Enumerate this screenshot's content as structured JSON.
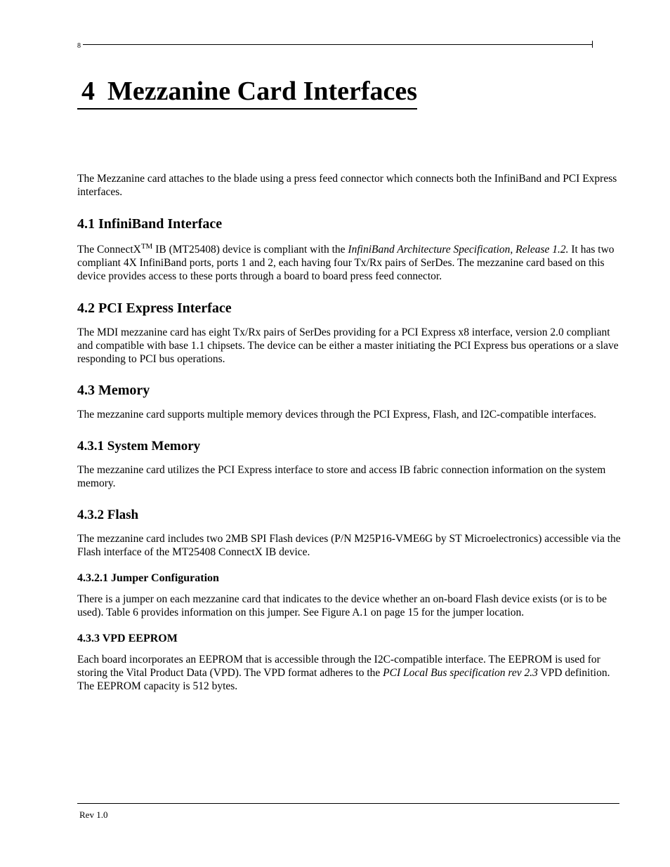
{
  "page": {
    "page_number_top": "8",
    "footer_rev": "Rev 1.0"
  },
  "chapter": {
    "number": "4",
    "title": "Mezzanine Card Interfaces"
  },
  "intro": "The Mezzanine card attaches to the blade using a press feed connector which connects both the InfiniBand and PCI Express interfaces.",
  "sections": {
    "s41": {
      "heading": "4.1 InfiniBand Interface",
      "p1_a": "The ConnectX",
      "p1_tm": "TM",
      "p1_b": " IB (MT25408) device is compliant with the ",
      "p1_italic": "InfiniBand Architecture Specification, Release 1.2.",
      "p1_c": " It has two compliant 4X InfiniBand ports, ports 1 and 2, each having four Tx/Rx pairs of SerDes. The  mezzanine card based on this device provides access to these ports through a board to board press feed connector."
    },
    "s42": {
      "heading": "4.2 PCI Express Interface",
      "p1": "The MDI mezzanine card has eight Tx/Rx pairs of SerDes providing for a PCI Express x8 interface, version 2.0 compliant and compatible with base 1.1 chipsets. The device can be either a master initiating the PCI Express bus operations or a slave responding to PCI bus operations."
    },
    "s43": {
      "heading": "4.3 Memory",
      "p1": "The mezzanine card supports multiple memory devices through the PCI Express, Flash, and I2C-compatible interfaces."
    },
    "s431": {
      "heading": "4.3.1 System Memory",
      "p1": "The mezzanine card utilizes the PCI Express interface to store and access IB fabric connection information on the system memory."
    },
    "s432": {
      "heading": "4.3.2 Flash",
      "p1": "The mezzanine card includes two 2MB SPI Flash devices (P/N M25P16-VME6G by ST Microelectronics) accessible via the Flash interface of the MT25408 ConnectX IB device."
    },
    "s4321": {
      "heading": "4.3.2.1 Jumper Configuration",
      "p1": "There is a jumper on each mezzanine card that indicates to the device whether an on-board Flash device exists (or is to be used). Table 6 provides information on this jumper. See Figure A.1 on page 15 for the jumper location."
    },
    "s433": {
      "heading": "4.3.3 VPD EEPROM",
      "p1_a": "Each board incorporates an EEPROM that is accessible through the I2C-compatible interface. The EEPROM is used for storing the Vital Product Data (VPD). The VPD format adheres to the ",
      "p1_italic": "PCI Local Bus specification rev 2.3",
      "p1_b": " VPD definition. The EEPROM capacity is 512 bytes."
    }
  }
}
